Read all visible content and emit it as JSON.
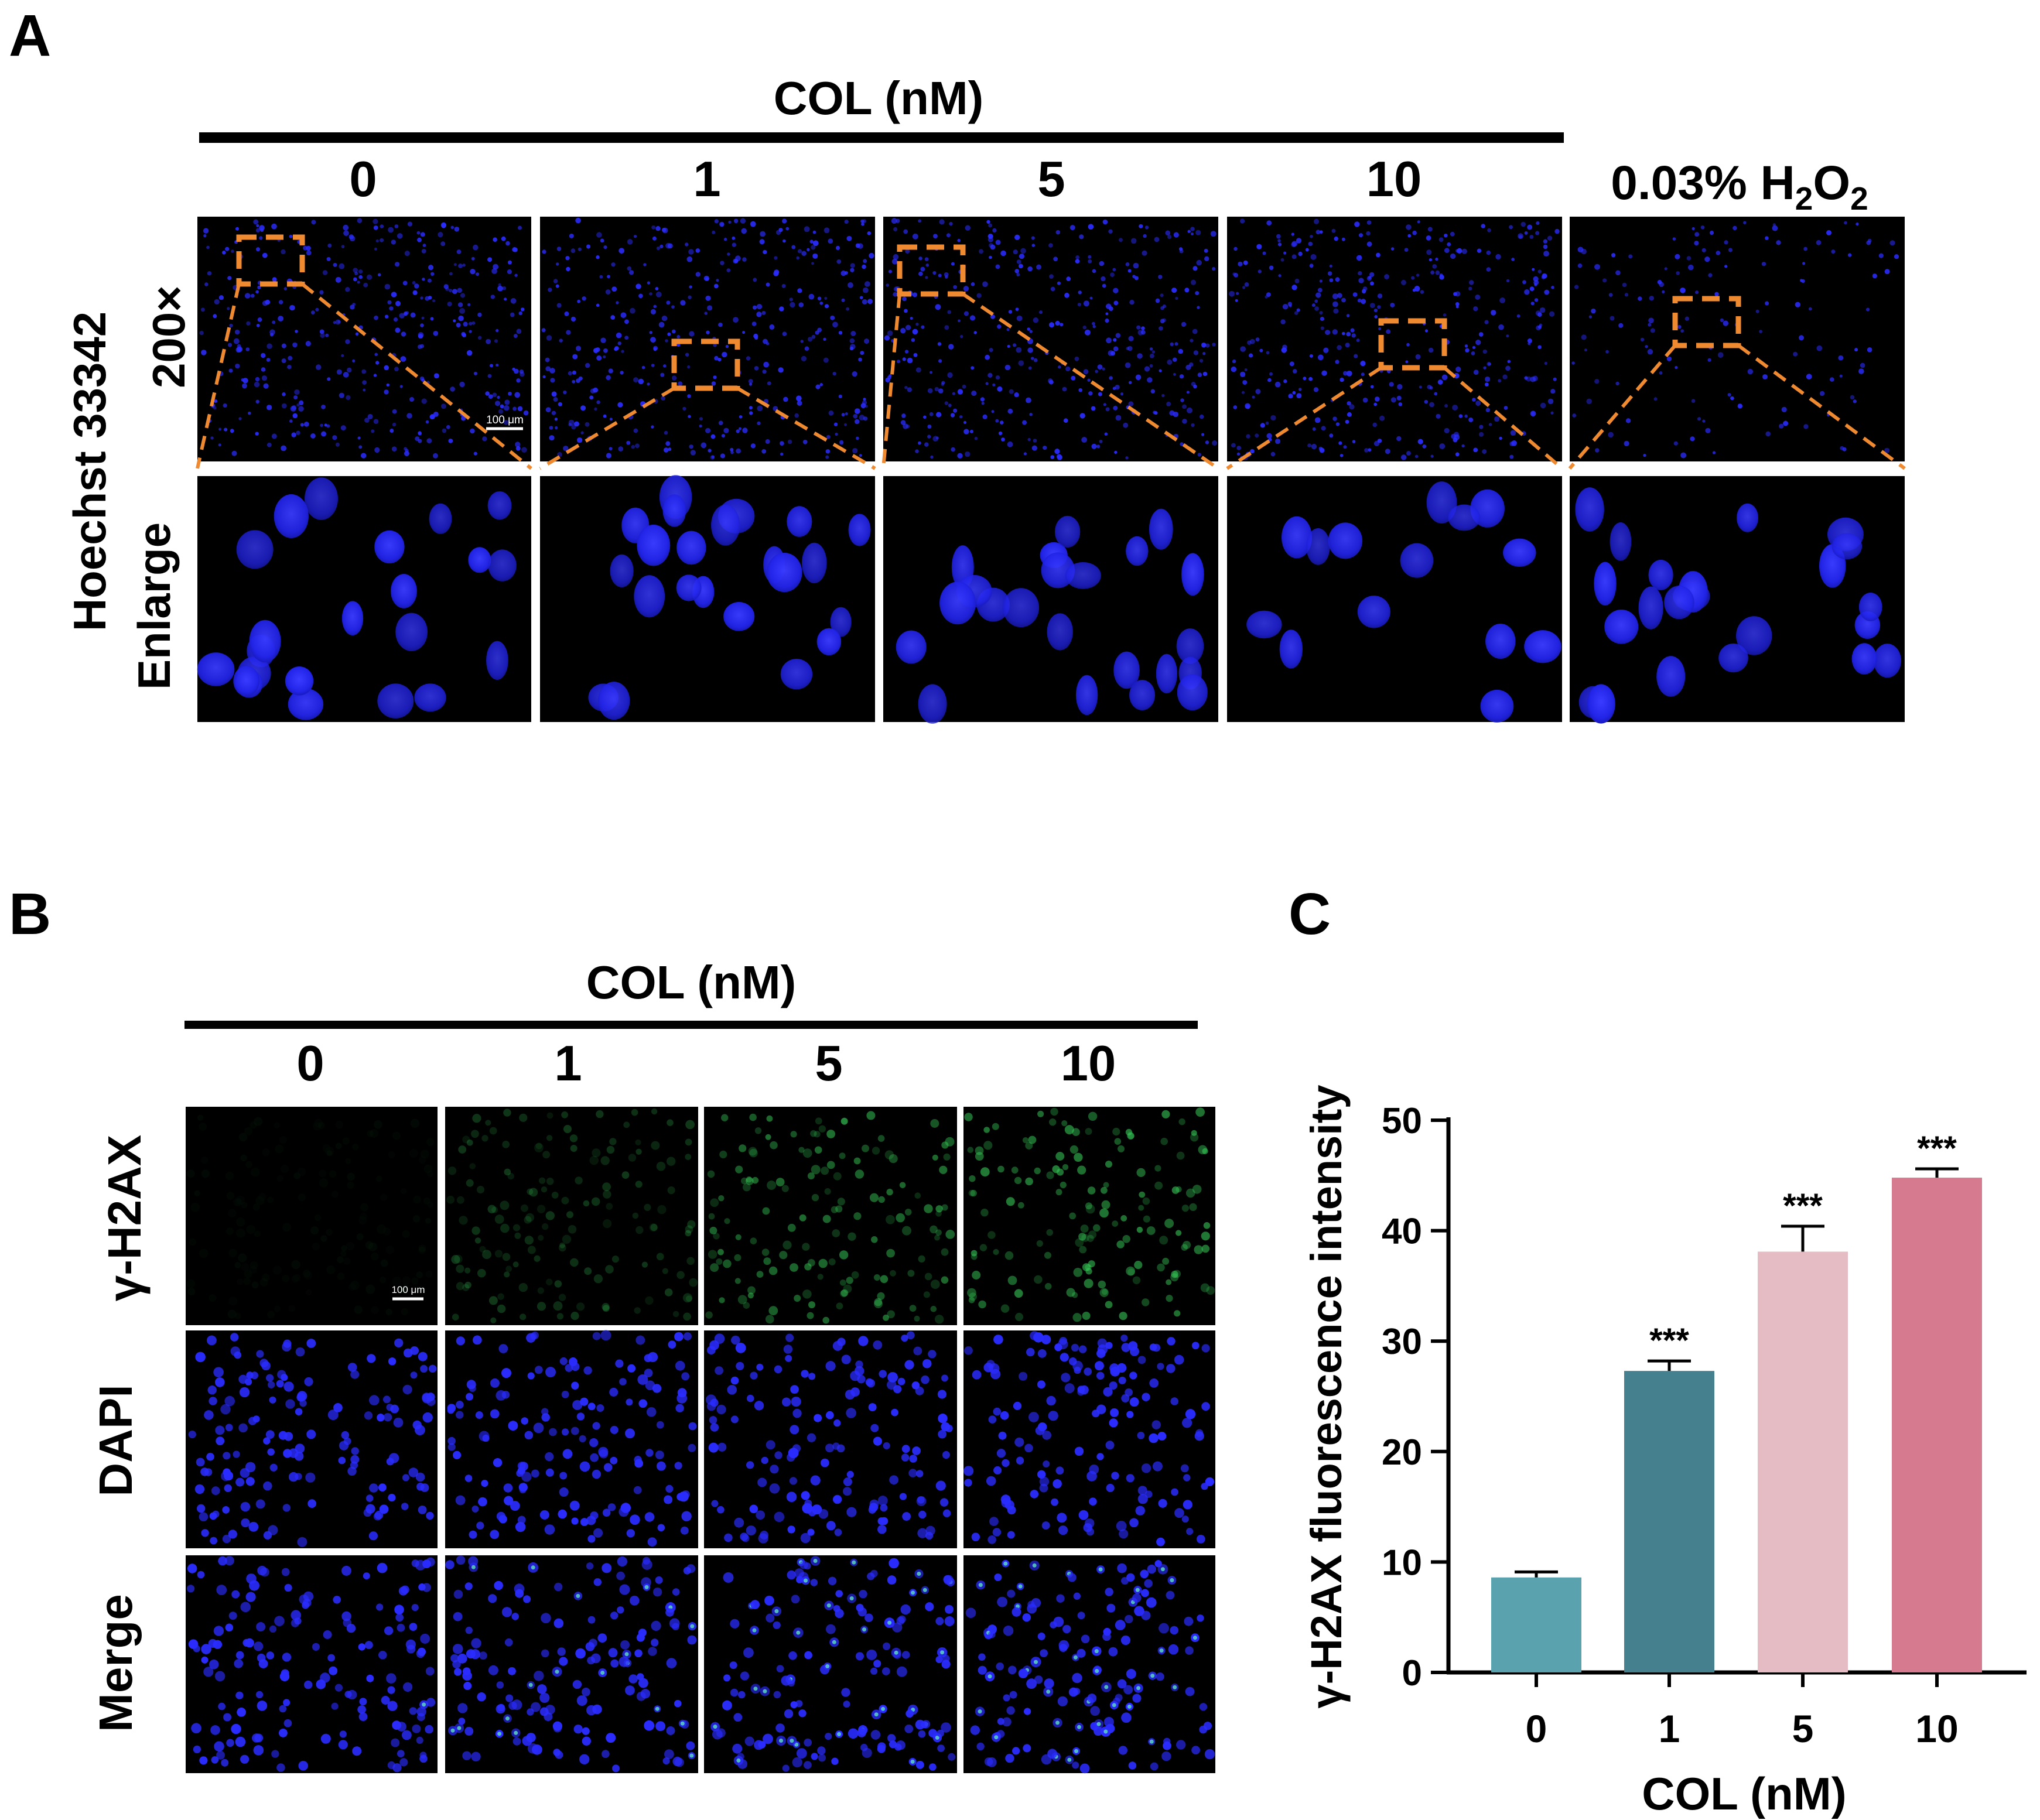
{
  "panelA": {
    "letter": "A",
    "group_label": "COL (nM)",
    "columns": [
      "0",
      "1",
      "5",
      "10"
    ],
    "h2o2_label": {
      "prefix": "0.03% H",
      "sub1": "2",
      "mid": "O",
      "sub2": "2"
    },
    "row_label_top": "Hoechst 33342",
    "row_label_bottom": "200×",
    "row_label_enlarge": "Enlarge",
    "scale_bar": "100 μm",
    "colors": {
      "nuclei": "#2a2cff",
      "zoom_box": "#f08a30",
      "background": "#000000"
    }
  },
  "panelB": {
    "letter": "B",
    "group_label": "COL (nM)",
    "columns": [
      "0",
      "1",
      "5",
      "10"
    ],
    "rows": [
      "γ-H2AX",
      "DAPI",
      "Merge"
    ],
    "scale_bar": "100 μm",
    "colors": {
      "nuclei": "#2a2cff",
      "gh2ax": "#35c455"
    }
  },
  "panelC": {
    "letter": "C",
    "chart_data": {
      "type": "bar",
      "categories": [
        "0",
        "1",
        "5",
        "10"
      ],
      "values": [
        8.6,
        27.3,
        38.1,
        44.8
      ],
      "errors": [
        0.5,
        0.9,
        2.3,
        0.8
      ],
      "significance": [
        "",
        "***",
        "***",
        "***"
      ],
      "colors": [
        "#5aa2ad",
        "#44808d",
        "#e5bcc3",
        "#d57a8f"
      ],
      "ylabel": "γ-H2AX fluorescence intensity",
      "xlabel": "COL (nM)",
      "ylim": [
        0,
        50
      ],
      "yticks": [
        "0",
        "10",
        "20",
        "30",
        "40",
        "50"
      ]
    }
  }
}
